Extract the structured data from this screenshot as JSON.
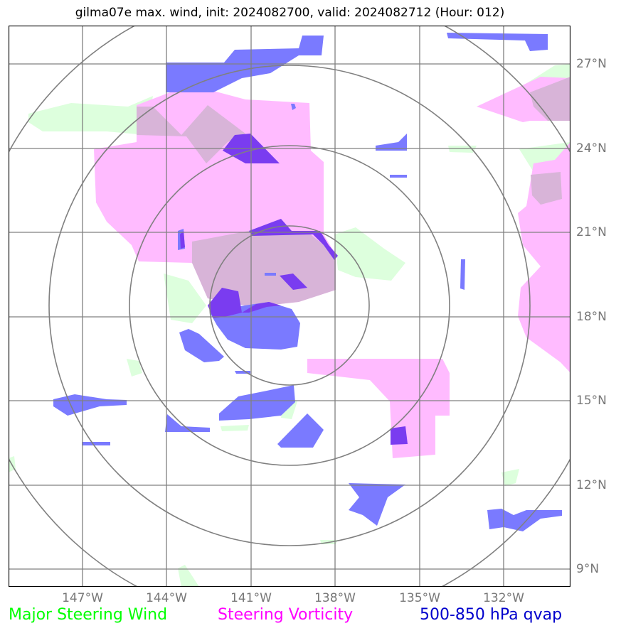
{
  "title": "gilma07e max. wind, init: 2024082700, valid: 2024082712 (Hour: 012)",
  "longitude_ticks": [
    "147°W",
    "144°W",
    "141°W",
    "138°W",
    "135°W",
    "132°W"
  ],
  "latitude_ticks": [
    "27°N",
    "24°N",
    "21°N",
    "18°N",
    "15°N",
    "12°N",
    "9°N"
  ],
  "legend": {
    "wind": "Major Steering Wind",
    "vorticity": "Steering Vorticity",
    "qvap": "500-850 hPa qvap"
  },
  "colors": {
    "wind": "#00ff00",
    "vorticity": "#ff00ff",
    "qvap": "#0000cc",
    "wind_fill": "#ddffdd",
    "vorticity_fill": "#ffbbff",
    "qvap_fill": "#7a7aff",
    "grid": "#808080"
  },
  "map": {
    "projection": "azimuthal",
    "longitude_range": [
      "149.6°W",
      "129.6°W"
    ],
    "latitude_range": [
      "8.4°N",
      "28.4°N"
    ],
    "range_rings": 4
  }
}
